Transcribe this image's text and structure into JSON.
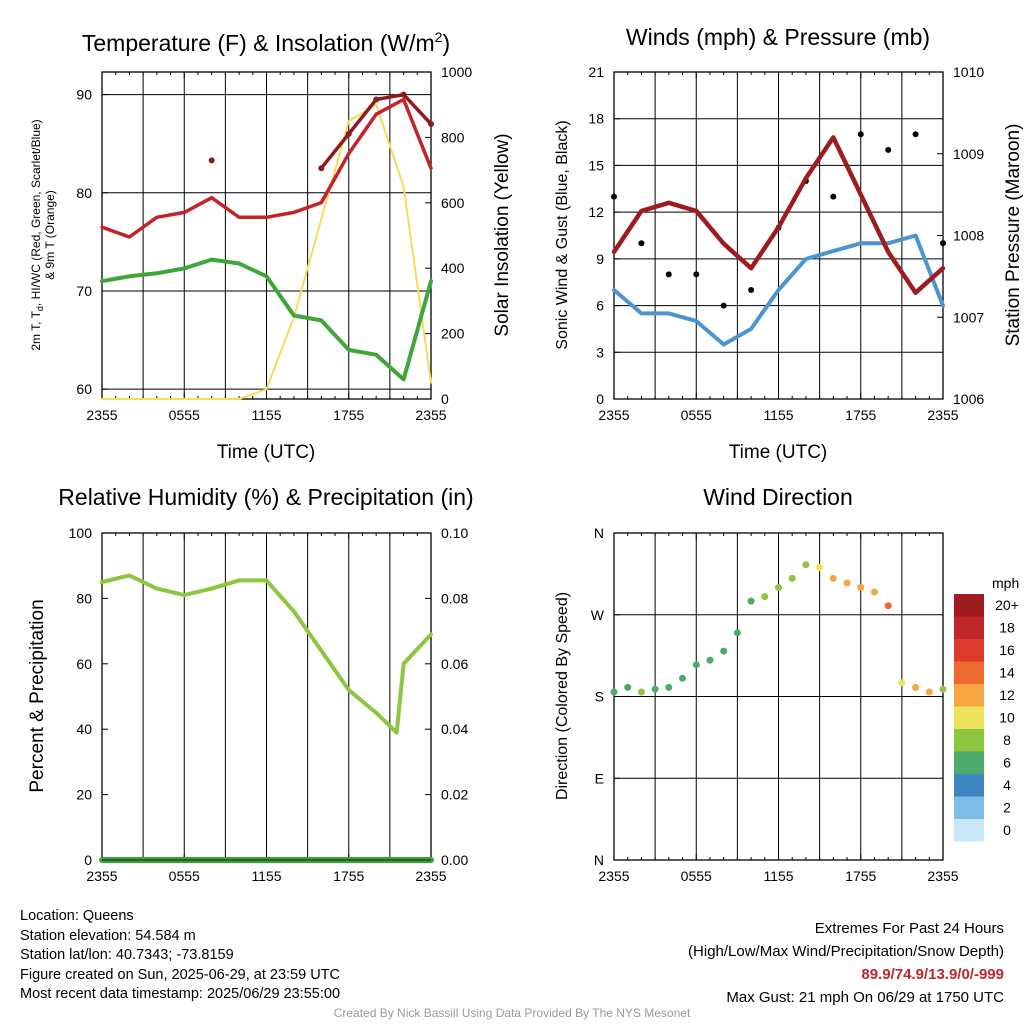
{
  "colors": {
    "temp": "#c4232a",
    "dew": "#3fa63a",
    "hiwc": "#8e1b1e",
    "insol": "#f4dd5a",
    "wind": "#4b96d1",
    "gust": "#000000",
    "pressure": "#9e1b1f",
    "rh": "#8dc63f",
    "precip": "#3aa23a"
  },
  "time_ticks": [
    "2355",
    "0555",
    "1155",
    "1755",
    "2355"
  ],
  "panels": {
    "temp": {
      "title_main": "Temperature (F) & Insolation (W/m",
      "title_sup": "2",
      "title_end": ")",
      "ylabel_line1": "2m T, T",
      "ylabel_sub": "d",
      "ylabel_line1_end": ", HI/WC (Red, Green, Scarlet/Blue)",
      "ylabel_line2": "& 9m T (Orange)",
      "y2label": "Solar Insolation (Yellow)",
      "xlabel": "Time (UTC)",
      "yticks": [
        "60",
        "70",
        "80",
        "90"
      ],
      "y2ticks": [
        "0",
        "200",
        "400",
        "600",
        "800",
        "1000"
      ]
    },
    "wind": {
      "title": "Winds (mph) & Pressure (mb)",
      "ylabel": "Sonic Wind & Gust (Blue, Black)",
      "y2label": "Station Pressure (Maroon)",
      "xlabel": "Time (UTC)",
      "yticks": [
        "0",
        "3",
        "6",
        "9",
        "12",
        "15",
        "18",
        "21"
      ],
      "y2ticks": [
        "1006",
        "1007",
        "1008",
        "1009",
        "1010"
      ]
    },
    "rh": {
      "title": "Relative Humidity (%) & Precipitation (in)",
      "ylabel": "Percent & Precipitation",
      "yticks": [
        "0",
        "20",
        "40",
        "60",
        "80",
        "100"
      ],
      "y2ticks": [
        "0.00",
        "0.02",
        "0.04",
        "0.06",
        "0.08",
        "0.10"
      ]
    },
    "dir": {
      "title": "Wind Direction",
      "ylabel": "Direction (Colored By Speed)",
      "yticks": [
        "N",
        "E",
        "S",
        "W",
        "N"
      ],
      "legend_title": "mph",
      "legend_labels": [
        "20+",
        "18",
        "16",
        "14",
        "12",
        "10",
        "8",
        "6",
        "4",
        "2",
        "0"
      ],
      "legend_colors": [
        "#9e1b1f",
        "#c0272d",
        "#dc3a2d",
        "#ee6a2f",
        "#f7a443",
        "#ece35a",
        "#8dc63f",
        "#4caa6a",
        "#3e86c2",
        "#7ebde6",
        "#c8e7f8"
      ]
    }
  },
  "chart_data": [
    {
      "type": "line",
      "title": "Temperature (F) & Insolation (W/m2)",
      "xlabel": "Time (UTC)",
      "ylim": [
        59,
        92.3
      ],
      "y2lim": [
        0,
        1000
      ],
      "x": [
        0,
        2,
        4,
        6,
        8,
        10,
        12,
        14,
        16,
        18,
        20,
        22,
        24
      ],
      "series": [
        {
          "name": "2m T (Red)",
          "values": [
            76.5,
            75.5,
            77.5,
            78,
            79.5,
            77.5,
            77.5,
            78,
            79,
            84,
            88,
            89.5,
            82.5
          ]
        },
        {
          "name": "Td (Green)",
          "values": [
            71,
            71.5,
            71.8,
            72.3,
            73.2,
            72.8,
            71.5,
            67.5,
            67,
            64,
            63.5,
            61,
            71
          ]
        },
        {
          "name": "HI/WC (Scarlet)",
          "values": [
            null,
            null,
            null,
            null,
            83.3,
            null,
            null,
            null,
            82.5,
            86,
            89.5,
            90,
            87
          ]
        },
        {
          "name": "Solar Insolation (Yellow)",
          "axis": "y2",
          "values": [
            0,
            0,
            0,
            0,
            0,
            0,
            30,
            250,
            550,
            850,
            900,
            650,
            50
          ]
        }
      ]
    },
    {
      "type": "line",
      "title": "Winds (mph) & Pressure (mb)",
      "xlabel": "Time (UTC)",
      "ylim": [
        0,
        21
      ],
      "y2lim": [
        1006,
        1010
      ],
      "x": [
        0,
        2,
        4,
        6,
        8,
        10,
        12,
        14,
        16,
        18,
        20,
        22,
        24
      ],
      "series": [
        {
          "name": "Sonic Wind (Blue)",
          "values": [
            7,
            5.5,
            5.5,
            5,
            3.5,
            4.5,
            7,
            9,
            9.5,
            10,
            10,
            10.5,
            6
          ]
        },
        {
          "name": "Gust (Black)",
          "values": [
            13,
            10,
            8,
            8,
            6,
            7,
            11,
            14,
            13,
            17,
            16,
            17,
            10
          ]
        },
        {
          "name": "Station Pressure (Maroon)",
          "axis": "y2",
          "values": [
            1007.8,
            1008.3,
            1008.4,
            1008.3,
            1007.9,
            1007.6,
            1008.1,
            1008.7,
            1009.2,
            1008.5,
            1007.8,
            1007.3,
            1007.6
          ]
        }
      ]
    },
    {
      "type": "line",
      "title": "Relative Humidity (%) & Precipitation (in)",
      "ylim": [
        0,
        100
      ],
      "y2lim": [
        0,
        0.1
      ],
      "x": [
        0,
        2,
        4,
        6,
        8,
        10,
        12,
        14,
        16,
        18,
        20,
        21.5,
        22,
        24
      ],
      "series": [
        {
          "name": "Relative Humidity",
          "values": [
            85,
            87,
            83,
            81,
            83,
            85.5,
            85.5,
            76,
            64,
            52,
            45,
            39,
            60,
            69
          ]
        },
        {
          "name": "Precipitation",
          "axis": "y2",
          "values": [
            0,
            0,
            0,
            0,
            0,
            0,
            0,
            0,
            0,
            0,
            0,
            0,
            0,
            0
          ]
        }
      ]
    },
    {
      "type": "scatter",
      "title": "Wind Direction",
      "ylim": [
        0,
        360
      ],
      "yticks": [
        "N",
        "E",
        "S",
        "W",
        "N"
      ],
      "x": [
        0,
        1,
        2,
        3,
        4,
        5,
        6,
        7,
        8,
        9,
        10,
        11,
        12,
        13,
        14,
        15,
        16,
        17,
        18,
        19,
        20,
        21,
        22,
        23,
        24
      ],
      "series": [
        {
          "name": "Direction (deg)",
          "values": [
            185,
            190,
            185,
            188,
            190,
            200,
            215,
            220,
            230,
            250,
            285,
            290,
            300,
            310,
            325,
            322,
            310,
            305,
            300,
            295,
            280,
            195,
            190,
            185,
            188
          ]
        },
        {
          "name": "Speed (mph)",
          "values": [
            6,
            6,
            7,
            6,
            5,
            6,
            6,
            5,
            5,
            6,
            6,
            7,
            8,
            8,
            8,
            9,
            11,
            12,
            11,
            12,
            13,
            10,
            12,
            12,
            8
          ]
        }
      ]
    }
  ],
  "meta": {
    "location": "Location: Queens",
    "elevation": "Station elevation: 54.584 m",
    "latlon": "Station lat/lon: 40.7343; -73.8159",
    "created": "Figure created on Sun, 2025-06-29, at 23:59 UTC",
    "recent": "Most recent data timestamp: 2025/06/29 23:55:00"
  },
  "extremes": {
    "title": "Extremes For Past 24 Hours",
    "subtitle": "(High/Low/Max Wind/Precipitation/Snow Depth)",
    "values": "89.9/74.9/13.9/0/-999",
    "gust": "Max Gust: 21 mph On 06/29 at 1750 UTC"
  },
  "credit": "Created By Nick Bassill Using Data Provided By The NYS Mesonet"
}
